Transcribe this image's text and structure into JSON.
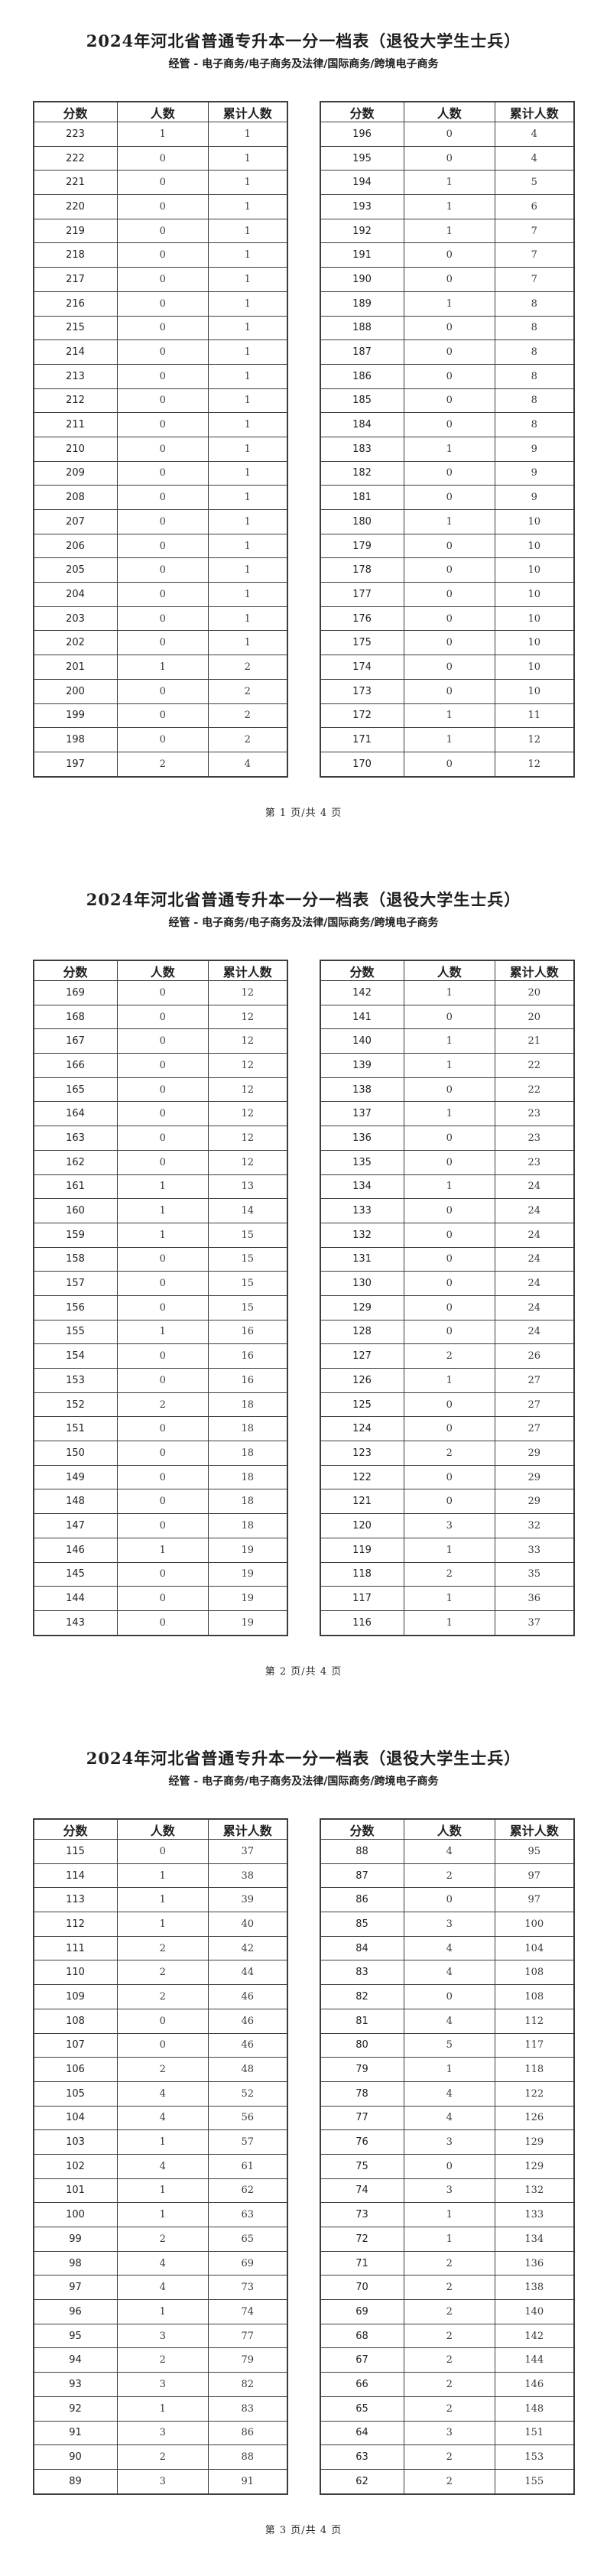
{
  "title": "2024年河北省普通专升本一分一档表（退役大学生士兵）",
  "subtitle": "经管 - 电子商务/电子商务及法律/国际商务/跨境电子商务",
  "table_headers": [
    "分数",
    "人数",
    "累计人数"
  ],
  "pages": [
    {
      "footer": "第 1 页/共 4 页",
      "left_rows": [
        [
          223,
          1,
          1
        ],
        [
          222,
          0,
          1
        ],
        [
          221,
          0,
          1
        ],
        [
          220,
          0,
          1
        ],
        [
          219,
          0,
          1
        ],
        [
          218,
          0,
          1
        ],
        [
          217,
          0,
          1
        ],
        [
          216,
          0,
          1
        ],
        [
          215,
          0,
          1
        ],
        [
          214,
          0,
          1
        ],
        [
          213,
          0,
          1
        ],
        [
          212,
          0,
          1
        ],
        [
          211,
          0,
          1
        ],
        [
          210,
          0,
          1
        ],
        [
          209,
          0,
          1
        ],
        [
          208,
          0,
          1
        ],
        [
          207,
          0,
          1
        ],
        [
          206,
          0,
          1
        ],
        [
          205,
          0,
          1
        ],
        [
          204,
          0,
          1
        ],
        [
          203,
          0,
          1
        ],
        [
          202,
          0,
          1
        ],
        [
          201,
          1,
          2
        ],
        [
          200,
          0,
          2
        ],
        [
          199,
          0,
          2
        ],
        [
          198,
          0,
          2
        ],
        [
          197,
          2,
          4
        ]
      ],
      "right_rows": [
        [
          196,
          0,
          4
        ],
        [
          195,
          0,
          4
        ],
        [
          194,
          1,
          5
        ],
        [
          193,
          1,
          6
        ],
        [
          192,
          1,
          7
        ],
        [
          191,
          0,
          7
        ],
        [
          190,
          0,
          7
        ],
        [
          189,
          1,
          8
        ],
        [
          188,
          0,
          8
        ],
        [
          187,
          0,
          8
        ],
        [
          186,
          0,
          8
        ],
        [
          185,
          0,
          8
        ],
        [
          184,
          0,
          8
        ],
        [
          183,
          1,
          9
        ],
        [
          182,
          0,
          9
        ],
        [
          181,
          0,
          9
        ],
        [
          180,
          1,
          10
        ],
        [
          179,
          0,
          10
        ],
        [
          178,
          0,
          10
        ],
        [
          177,
          0,
          10
        ],
        [
          176,
          0,
          10
        ],
        [
          175,
          0,
          10
        ],
        [
          174,
          0,
          10
        ],
        [
          173,
          0,
          10
        ],
        [
          172,
          1,
          11
        ],
        [
          171,
          1,
          12
        ],
        [
          170,
          0,
          12
        ]
      ]
    },
    {
      "footer": "第 2 页/共 4 页",
      "left_rows": [
        [
          169,
          0,
          12
        ],
        [
          168,
          0,
          12
        ],
        [
          167,
          0,
          12
        ],
        [
          166,
          0,
          12
        ],
        [
          165,
          0,
          12
        ],
        [
          164,
          0,
          12
        ],
        [
          163,
          0,
          12
        ],
        [
          162,
          0,
          12
        ],
        [
          161,
          1,
          13
        ],
        [
          160,
          1,
          14
        ],
        [
          159,
          1,
          15
        ],
        [
          158,
          0,
          15
        ],
        [
          157,
          0,
          15
        ],
        [
          156,
          0,
          15
        ],
        [
          155,
          1,
          16
        ],
        [
          154,
          0,
          16
        ],
        [
          153,
          0,
          16
        ],
        [
          152,
          2,
          18
        ],
        [
          151,
          0,
          18
        ],
        [
          150,
          0,
          18
        ],
        [
          149,
          0,
          18
        ],
        [
          148,
          0,
          18
        ],
        [
          147,
          0,
          18
        ],
        [
          146,
          1,
          19
        ],
        [
          145,
          0,
          19
        ],
        [
          144,
          0,
          19
        ],
        [
          143,
          0,
          19
        ]
      ],
      "right_rows": [
        [
          142,
          1,
          20
        ],
        [
          141,
          0,
          20
        ],
        [
          140,
          1,
          21
        ],
        [
          139,
          1,
          22
        ],
        [
          138,
          0,
          22
        ],
        [
          137,
          1,
          23
        ],
        [
          136,
          0,
          23
        ],
        [
          135,
          0,
          23
        ],
        [
          134,
          1,
          24
        ],
        [
          133,
          0,
          24
        ],
        [
          132,
          0,
          24
        ],
        [
          131,
          0,
          24
        ],
        [
          130,
          0,
          24
        ],
        [
          129,
          0,
          24
        ],
        [
          128,
          0,
          24
        ],
        [
          127,
          2,
          26
        ],
        [
          126,
          1,
          27
        ],
        [
          125,
          0,
          27
        ],
        [
          124,
          0,
          27
        ],
        [
          123,
          2,
          29
        ],
        [
          122,
          0,
          29
        ],
        [
          121,
          0,
          29
        ],
        [
          120,
          3,
          32
        ],
        [
          119,
          1,
          33
        ],
        [
          118,
          2,
          35
        ],
        [
          117,
          1,
          36
        ],
        [
          116,
          1,
          37
        ]
      ]
    },
    {
      "footer": "第 3 页/共 4 页",
      "left_rows": [
        [
          115,
          0,
          37
        ],
        [
          114,
          1,
          38
        ],
        [
          113,
          1,
          39
        ],
        [
          112,
          1,
          40
        ],
        [
          111,
          2,
          42
        ],
        [
          110,
          2,
          44
        ],
        [
          109,
          2,
          46
        ],
        [
          108,
          0,
          46
        ],
        [
          107,
          0,
          46
        ],
        [
          106,
          2,
          48
        ],
        [
          105,
          4,
          52
        ],
        [
          104,
          4,
          56
        ],
        [
          103,
          1,
          57
        ],
        [
          102,
          4,
          61
        ],
        [
          101,
          1,
          62
        ],
        [
          100,
          1,
          63
        ],
        [
          99,
          2,
          65
        ],
        [
          98,
          4,
          69
        ],
        [
          97,
          4,
          73
        ],
        [
          96,
          1,
          74
        ],
        [
          95,
          3,
          77
        ],
        [
          94,
          2,
          79
        ],
        [
          93,
          3,
          82
        ],
        [
          92,
          1,
          83
        ],
        [
          91,
          3,
          86
        ],
        [
          90,
          2,
          88
        ],
        [
          89,
          3,
          91
        ]
      ],
      "right_rows": [
        [
          88,
          4,
          95
        ],
        [
          87,
          2,
          97
        ],
        [
          86,
          0,
          97
        ],
        [
          85,
          3,
          100
        ],
        [
          84,
          4,
          104
        ],
        [
          83,
          4,
          108
        ],
        [
          82,
          0,
          108
        ],
        [
          81,
          4,
          112
        ],
        [
          80,
          5,
          117
        ],
        [
          79,
          1,
          118
        ],
        [
          78,
          4,
          122
        ],
        [
          77,
          4,
          126
        ],
        [
          76,
          3,
          129
        ],
        [
          75,
          0,
          129
        ],
        [
          74,
          3,
          132
        ],
        [
          73,
          1,
          133
        ],
        [
          72,
          1,
          134
        ],
        [
          71,
          2,
          136
        ],
        [
          70,
          2,
          138
        ],
        [
          69,
          2,
          140
        ],
        [
          68,
          2,
          142
        ],
        [
          67,
          2,
          144
        ],
        [
          66,
          2,
          146
        ],
        [
          65,
          2,
          148
        ],
        [
          64,
          3,
          151
        ],
        [
          63,
          2,
          153
        ],
        [
          62,
          2,
          155
        ]
      ]
    }
  ]
}
